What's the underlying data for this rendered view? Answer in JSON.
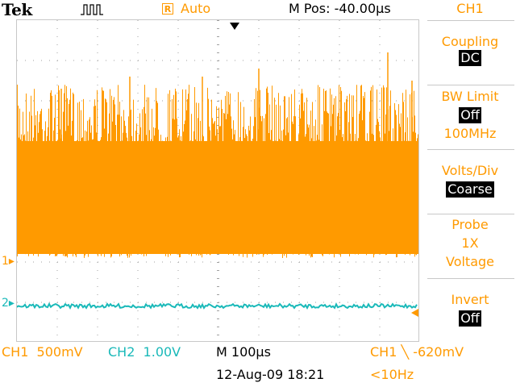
{
  "header": {
    "brand": "Tek",
    "trigger_state": "R",
    "trigger_mode": "Auto",
    "position_readout": "M Pos: -40.00µs"
  },
  "menu": {
    "title": "CH1",
    "items": [
      {
        "label": "Coupling",
        "value": "DC"
      },
      {
        "label": "BW Limit",
        "value": "Off",
        "extra": "100MHz"
      },
      {
        "label": "Volts/Div",
        "value": "Coarse"
      },
      {
        "label": "Probe",
        "value": "1X",
        "extra": "Voltage"
      },
      {
        "label": "Invert",
        "value": "Off"
      }
    ]
  },
  "markers": {
    "ch1": "1",
    "ch2": "2"
  },
  "footer": {
    "ch1_scale": "CH1  500mV",
    "ch2_scale": "CH2  1.00V",
    "timebase": "M 100µs",
    "trigger": "CH1 ╲ -620mV",
    "date": "12-Aug-09 18:21",
    "freq": "<10Hz"
  },
  "colors": {
    "ch1": "#ff9a00",
    "ch2": "#1ab9b9"
  }
}
